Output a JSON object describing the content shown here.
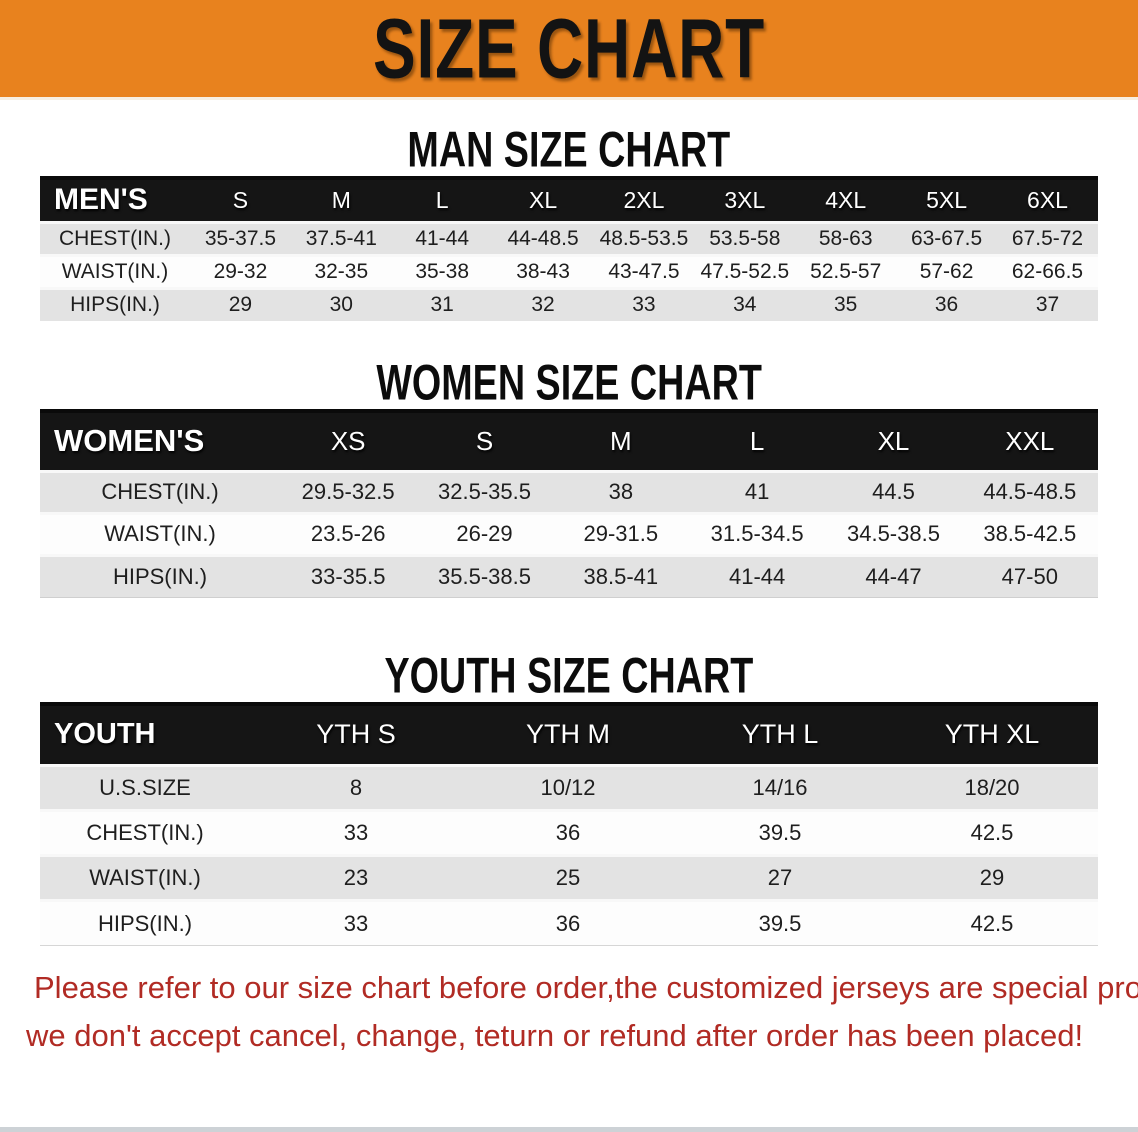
{
  "banner": {
    "title": "SIZE CHART",
    "bg_color": "#E8821E",
    "text_color": "#131313"
  },
  "men": {
    "heading": "MAN SIZE CHART",
    "label": "MEN'S",
    "columns": [
      "S",
      "M",
      "L",
      "XL",
      "2XL",
      "3XL",
      "4XL",
      "5XL",
      "6XL"
    ],
    "rows": [
      {
        "label": "CHEST(IN.)",
        "values": [
          "35-37.5",
          "37.5-41",
          "41-44",
          "44-48.5",
          "48.5-53.5",
          "53.5-58",
          "58-63",
          "63-67.5",
          "67.5-72"
        ]
      },
      {
        "label": "WAIST(IN.)",
        "values": [
          "29-32",
          "32-35",
          "35-38",
          "38-43",
          "43-47.5",
          "47.5-52.5",
          "52.5-57",
          "57-62",
          "62-66.5"
        ]
      },
      {
        "label": "HIPS(IN.)",
        "values": [
          "29",
          "30",
          "31",
          "32",
          "33",
          "34",
          "35",
          "36",
          "37"
        ]
      }
    ]
  },
  "women": {
    "heading": "WOMEN SIZE CHART",
    "label": "WOMEN'S",
    "columns": [
      "XS",
      "S",
      "M",
      "L",
      "XL",
      "XXL"
    ],
    "rows": [
      {
        "label": "CHEST(IN.)",
        "values": [
          "29.5-32.5",
          "32.5-35.5",
          "38",
          "41",
          "44.5",
          "44.5-48.5"
        ]
      },
      {
        "label": "WAIST(IN.)",
        "values": [
          "23.5-26",
          "26-29",
          "29-31.5",
          "31.5-34.5",
          "34.5-38.5",
          "38.5-42.5"
        ]
      },
      {
        "label": "HIPS(IN.)",
        "values": [
          "33-35.5",
          "35.5-38.5",
          "38.5-41",
          "41-44",
          "44-47",
          "47-50"
        ]
      }
    ]
  },
  "youth": {
    "heading": "YOUTH SIZE CHART",
    "label": "YOUTH",
    "columns": [
      "YTH S",
      "YTH M",
      "YTH L",
      "YTH XL"
    ],
    "rows": [
      {
        "label": "U.S.SIZE",
        "values": [
          "8",
          "10/12",
          "14/16",
          "18/20"
        ]
      },
      {
        "label": "CHEST(IN.)",
        "values": [
          "33",
          "36",
          "39.5",
          "42.5"
        ]
      },
      {
        "label": "WAIST(IN.)",
        "values": [
          "23",
          "25",
          "27",
          "29"
        ]
      },
      {
        "label": "HIPS(IN.)",
        "values": [
          "33",
          "36",
          "39.5",
          "42.5"
        ]
      }
    ]
  },
  "footer_note": {
    "line1": "Please refer to our size chart before order,the customized jerseys are special products,",
    "line2": "we don't accept cancel, change, teturn or refund after order has been placed!",
    "text_color": "#b12b24"
  },
  "colors": {
    "banner_bg": "#E8821E",
    "table_header_bg": "#151515",
    "row_alt_bg": "#e3e3e3",
    "row_bg": "#fdfdfd",
    "note_red": "#b12b24"
  }
}
